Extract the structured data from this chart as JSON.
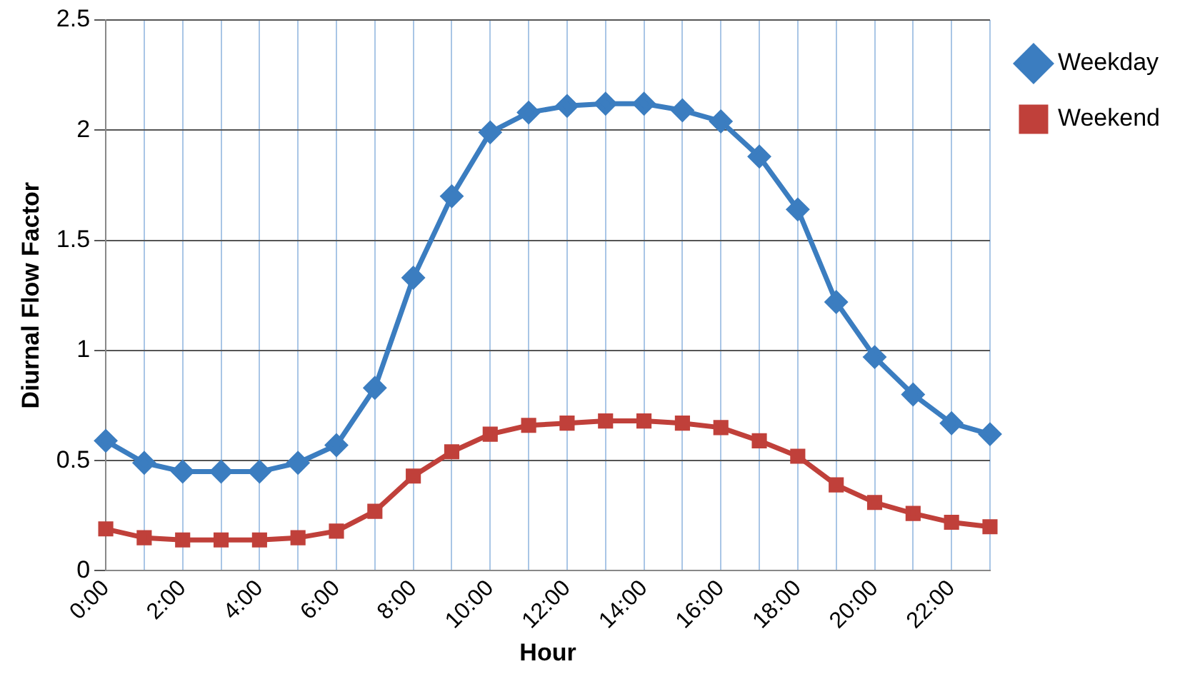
{
  "chart_data": {
    "type": "line",
    "xlabel": "Hour",
    "ylabel": "Diurnal Flow Factor",
    "categories": [
      "0:00",
      null,
      "2:00",
      null,
      "4:00",
      null,
      "6:00",
      null,
      "8:00",
      null,
      "10:00",
      null,
      "12:00",
      null,
      "14:00",
      null,
      "16:00",
      null,
      "18:00",
      null,
      "20:00",
      null,
      "22:00",
      null
    ],
    "series": [
      {
        "name": "Weekday",
        "color": "#3b7dc0",
        "marker": "diamond",
        "values": [
          0.59,
          0.49,
          0.45,
          0.45,
          0.45,
          0.49,
          0.57,
          0.83,
          1.33,
          1.7,
          1.99,
          2.08,
          2.11,
          2.12,
          2.12,
          2.09,
          2.04,
          1.88,
          1.64,
          1.22,
          0.97,
          0.8,
          0.67,
          0.62
        ]
      },
      {
        "name": "Weekend",
        "color": "#c0403a",
        "marker": "square",
        "values": [
          0.19,
          0.15,
          0.14,
          0.14,
          0.14,
          0.15,
          0.18,
          0.27,
          0.43,
          0.54,
          0.62,
          0.66,
          0.67,
          0.68,
          0.68,
          0.67,
          0.65,
          0.59,
          0.52,
          0.39,
          0.31,
          0.26,
          0.22,
          0.2
        ]
      }
    ],
    "ylim": [
      0,
      2.5
    ],
    "yticks": [
      0,
      0.5,
      1,
      1.5,
      2,
      2.5
    ],
    "grid": true,
    "legend": "right",
    "line_style": "solid"
  }
}
